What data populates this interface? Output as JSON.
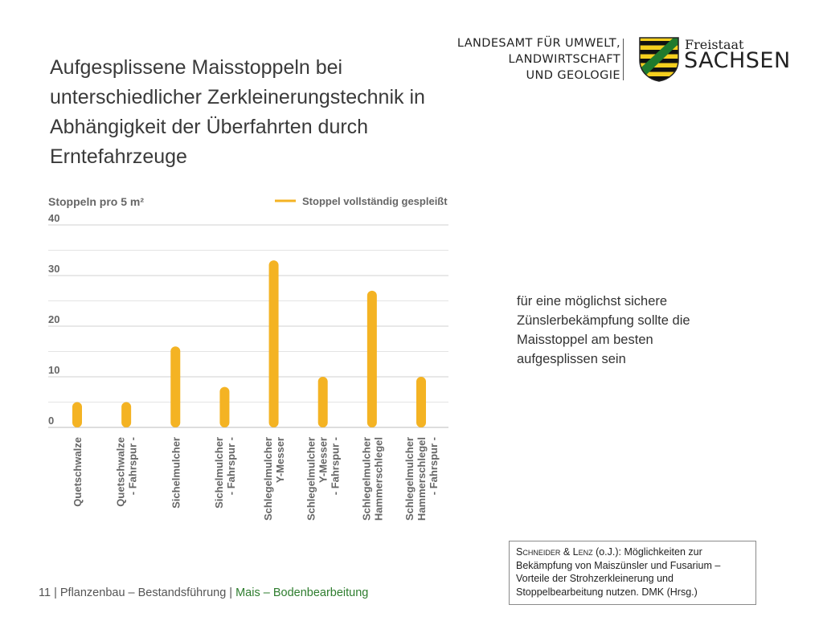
{
  "title": {
    "line1": "Aufgesplissene Maisstoppeln bei",
    "line2": "unterschiedlicher Zerkleinerungstechnik in",
    "line3": "Abhängigkeit der Überfahrten durch",
    "line4": "Erntefahrzeuge"
  },
  "logo": {
    "org_line1": "LANDESAMT FÜR UMWELT,",
    "org_line2": "LANDWIRTSCHAFT",
    "org_line3": "UND GEOLOGIE",
    "state_small": "Freistaat",
    "state_large": "SACHSEN",
    "colors": {
      "green": "#1f7a2e",
      "yellow": "#f5cf1e",
      "black": "#111111"
    }
  },
  "chart_data": {
    "type": "bar",
    "ylabel": "Stoppeln pro 5 m²",
    "legend": {
      "label": "Stoppel vollständig gespleißt",
      "placement": "top-right"
    },
    "ylim": [
      0,
      40
    ],
    "yticks": [
      0,
      10,
      20,
      30,
      40
    ],
    "grid": true,
    "color": "#f4b323",
    "categories": [
      {
        "line1": "Quetschwalze",
        "line2": ""
      },
      {
        "line1": "Quetschwalze",
        "line2": "- Fahrspur -"
      },
      {
        "line1": "Sichelmulcher",
        "line2": ""
      },
      {
        "line1": "Sichelmulcher",
        "line2": "- Fahrspur -"
      },
      {
        "line1": "Schlegelmulcher",
        "line2": "Y-Messer"
      },
      {
        "line1": "Schlegelmulcher",
        "line2": "Y-Messer",
        "line3": "- Fahrspur -"
      },
      {
        "line1": "Schlegelmulcher",
        "line2": "Hammerschlegel"
      },
      {
        "line1": "Schlegelmulcher",
        "line2": "Hammerschlegel",
        "line3": "- Fahrspur -"
      }
    ],
    "values": [
      5,
      5,
      16,
      8,
      33,
      10,
      27,
      10
    ]
  },
  "side_note": "für eine möglichst sichere Zünslerbekämpfung sollte die Maisstoppel am besten aufgesplissen sein",
  "citation": {
    "authors_a": "Schneider",
    "amp": " & ",
    "authors_b": "Lenz",
    "rest": " (o.J.): Möglichkeiten zur Bekämpfung von Maiszünsler und Fusarium – Vorteile der Strohzerkleinerung und Stoppelbearbeitung nutzen. DMK (Hrsg.)"
  },
  "footer": {
    "page": "11",
    "section": " | Pflanzenbau – Bestandsführung | ",
    "topic": "Mais – Bodenbearbeitung"
  }
}
